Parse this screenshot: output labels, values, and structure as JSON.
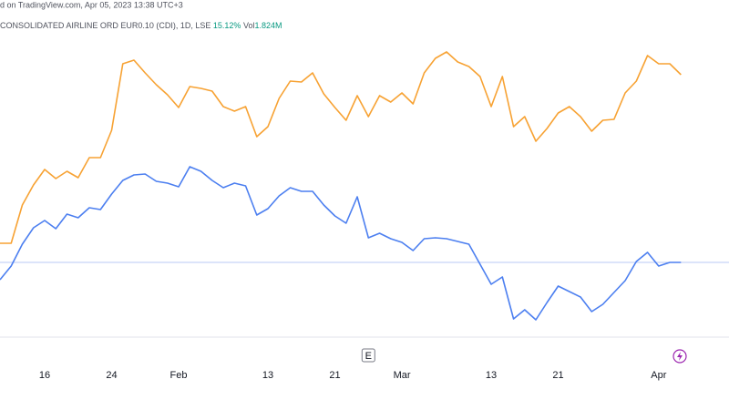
{
  "header": {
    "source": "d on TradingView.com, Apr 05, 2023 13:38 UTC+3",
    "symbol": "CONSOLIDATED AIRLINE ORD EUR0.10 (CDI), 1D, LSE",
    "change": "15.12%",
    "volume_label": "Vol",
    "volume": "1.824M"
  },
  "chart_data": {
    "type": "line",
    "x": [
      0,
      1,
      2,
      3,
      4,
      5,
      6,
      7,
      8,
      9,
      10,
      11,
      12,
      13,
      14,
      15,
      16,
      17,
      18,
      19,
      20,
      21,
      22,
      23,
      24,
      25,
      26,
      27,
      28,
      29,
      30,
      31,
      32,
      33,
      34,
      35,
      36,
      37,
      38,
      39,
      40,
      41,
      42,
      43,
      44,
      45,
      46,
      47,
      48,
      49,
      50,
      51,
      52,
      53,
      54,
      55,
      56,
      57,
      58,
      59,
      60,
      61
    ],
    "xlim": [
      0,
      65.3
    ],
    "xticks": [
      {
        "value": 4,
        "label": "16"
      },
      {
        "value": 10,
        "label": "24"
      },
      {
        "value": 16,
        "label": "Feb"
      },
      {
        "value": 24,
        "label": "13"
      },
      {
        "value": 30,
        "label": "21"
      },
      {
        "value": 36,
        "label": "Mar"
      },
      {
        "value": 44,
        "label": "13"
      },
      {
        "value": 50,
        "label": "21"
      },
      {
        "value": 59,
        "label": "Apr"
      }
    ],
    "ylim": [
      0,
      330
    ],
    "series": [
      {
        "color": "#f7a233",
        "values": [
          103,
          103,
          145,
          167,
          184,
          174,
          182,
          175,
          197,
          197,
          227,
          300,
          304,
          290,
          277,
          266,
          252,
          275,
          273,
          270,
          253,
          248,
          253,
          220,
          231,
          262,
          281,
          280,
          290,
          267,
          252,
          238,
          265,
          242,
          265,
          258,
          268,
          256,
          290,
          306,
          313,
          302,
          297,
          286,
          253,
          286,
          231,
          242,
          215,
          229,
          246,
          253,
          242,
          226,
          238,
          239,
          268,
          281,
          309,
          300,
          300,
          288
        ]
      },
      {
        "color": "#4c7ff0",
        "values": [
          63,
          78,
          102,
          120,
          128,
          119,
          135,
          131,
          142,
          140,
          157,
          172,
          178,
          179,
          171,
          169,
          165,
          187,
          182,
          172,
          164,
          169,
          166,
          134,
          141,
          155,
          164,
          160,
          160,
          145,
          133,
          125,
          154,
          109,
          114,
          108,
          104,
          95,
          108,
          109,
          108,
          105,
          102,
          80,
          58,
          66,
          20,
          30,
          19,
          38,
          56,
          50,
          44,
          28,
          36,
          49,
          62,
          83,
          93,
          78,
          82,
          82
        ]
      }
    ],
    "markers": [
      {
        "x": 33,
        "label": "E"
      }
    ]
  }
}
